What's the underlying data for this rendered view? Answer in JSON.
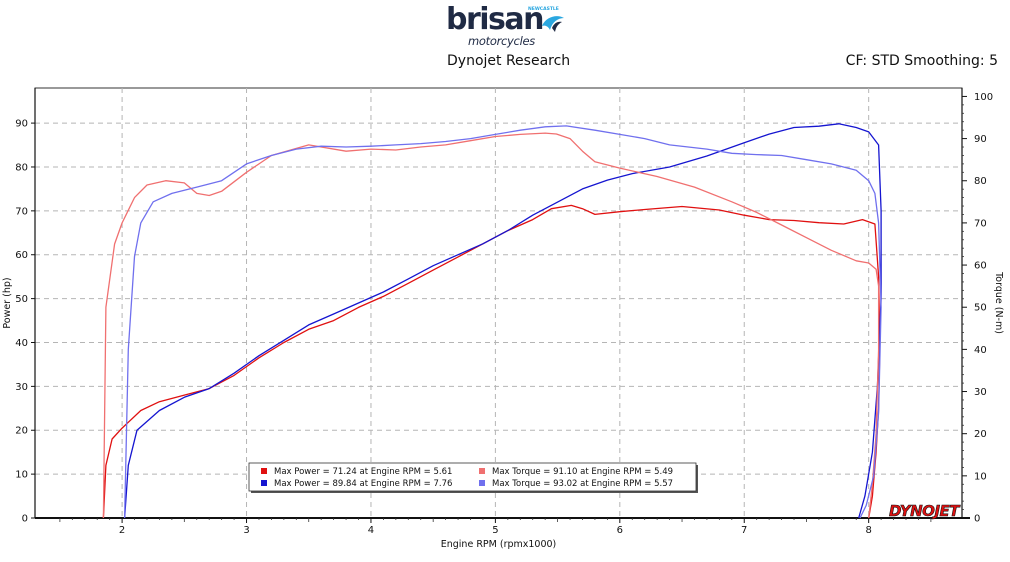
{
  "header": {
    "brand_name": "brisan",
    "brand_sub": "motorcycles",
    "brand_tag": "NEWCASTLE",
    "title": "Dynojet Research",
    "info": "CF: STD Smoothing: 5"
  },
  "watermark": "DYNOJET",
  "chart_data": {
    "type": "line",
    "xlabel": "Engine RPM (rpmx1000)",
    "ylabel_left": "Power (hp)",
    "ylabel_right": "Torque (N-m)",
    "xlim": [
      1.3,
      8.75
    ],
    "ylim_left": [
      0,
      98
    ],
    "ylim_right": [
      0,
      102
    ],
    "x_ticks": [
      2,
      3,
      4,
      5,
      6,
      7,
      8
    ],
    "left_ticks": [
      0,
      10,
      20,
      30,
      40,
      50,
      60,
      70,
      80,
      90
    ],
    "right_ticks": [
      0,
      10,
      20,
      30,
      40,
      50,
      60,
      70,
      80,
      90,
      100
    ],
    "grid": true,
    "colors": {
      "red": "#e01010",
      "blue": "#1515d0",
      "lightred": "#f07070",
      "lightblue": "#7070ee"
    },
    "legend": [
      {
        "text": "Max Power = 71.24 at Engine RPM = 5.61",
        "color": "#e01010"
      },
      {
        "text": "Max Torque = 91.10 at Engine RPM = 5.49",
        "color": "#f07070"
      },
      {
        "text": "Max Power = 89.84 at Engine RPM = 7.76",
        "color": "#1515d0"
      },
      {
        "text": "Max Torque = 93.02 at Engine RPM = 5.57",
        "color": "#7070ee"
      }
    ],
    "series": [
      {
        "axis": "left",
        "colorKey": "red",
        "points": [
          [
            1.85,
            0
          ],
          [
            1.87,
            12
          ],
          [
            1.92,
            18
          ],
          [
            2.0,
            20.5
          ],
          [
            2.15,
            24.5
          ],
          [
            2.3,
            26.5
          ],
          [
            2.5,
            28
          ],
          [
            2.7,
            29.5
          ],
          [
            2.9,
            32.5
          ],
          [
            3.1,
            36.5
          ],
          [
            3.3,
            40
          ],
          [
            3.5,
            43
          ],
          [
            3.7,
            45
          ],
          [
            3.9,
            48
          ],
          [
            4.1,
            50.5
          ],
          [
            4.3,
            53.5
          ],
          [
            4.5,
            56.5
          ],
          [
            4.7,
            59.5
          ],
          [
            4.9,
            62.5
          ],
          [
            5.1,
            65.5
          ],
          [
            5.3,
            68
          ],
          [
            5.45,
            70.5
          ],
          [
            5.61,
            71.24
          ],
          [
            5.7,
            70.5
          ],
          [
            5.8,
            69.2
          ],
          [
            6.0,
            69.8
          ],
          [
            6.2,
            70.3
          ],
          [
            6.5,
            71
          ],
          [
            6.8,
            70.2
          ],
          [
            7.0,
            69
          ],
          [
            7.2,
            68
          ],
          [
            7.4,
            67.8
          ],
          [
            7.6,
            67.3
          ],
          [
            7.8,
            67
          ],
          [
            7.95,
            68
          ],
          [
            8.05,
            67
          ],
          [
            8.08,
            55
          ],
          [
            8.09,
            40
          ],
          [
            8.08,
            25
          ],
          [
            8.06,
            15
          ],
          [
            8.03,
            5
          ],
          [
            8.0,
            0
          ]
        ]
      },
      {
        "axis": "left",
        "colorKey": "blue",
        "points": [
          [
            2.02,
            0
          ],
          [
            2.05,
            12
          ],
          [
            2.12,
            20
          ],
          [
            2.3,
            24.5
          ],
          [
            2.5,
            27.5
          ],
          [
            2.7,
            29.5
          ],
          [
            2.9,
            33
          ],
          [
            3.1,
            37
          ],
          [
            3.3,
            40.5
          ],
          [
            3.5,
            44
          ],
          [
            3.7,
            46.5
          ],
          [
            3.9,
            49
          ],
          [
            4.1,
            51.5
          ],
          [
            4.3,
            54.5
          ],
          [
            4.5,
            57.5
          ],
          [
            4.7,
            60
          ],
          [
            4.9,
            62.5
          ],
          [
            5.1,
            65.5
          ],
          [
            5.3,
            69
          ],
          [
            5.5,
            72
          ],
          [
            5.7,
            75
          ],
          [
            5.9,
            77
          ],
          [
            6.1,
            78.5
          ],
          [
            6.4,
            80
          ],
          [
            6.7,
            82.5
          ],
          [
            7.0,
            85.5
          ],
          [
            7.2,
            87.5
          ],
          [
            7.4,
            89
          ],
          [
            7.6,
            89.3
          ],
          [
            7.76,
            89.84
          ],
          [
            7.9,
            89
          ],
          [
            8.0,
            88
          ],
          [
            8.08,
            85
          ],
          [
            8.1,
            70
          ],
          [
            8.1,
            50
          ],
          [
            8.07,
            30
          ],
          [
            8.03,
            15
          ],
          [
            7.97,
            5
          ],
          [
            7.92,
            0
          ]
        ]
      },
      {
        "axis": "right",
        "colorKey": "lightred",
        "points": [
          [
            1.85,
            0
          ],
          [
            1.87,
            50
          ],
          [
            1.94,
            65
          ],
          [
            2.0,
            70
          ],
          [
            2.1,
            76
          ],
          [
            2.2,
            79
          ],
          [
            2.35,
            80
          ],
          [
            2.5,
            79.5
          ],
          [
            2.6,
            77
          ],
          [
            2.7,
            76.5
          ],
          [
            2.8,
            77.5
          ],
          [
            3.0,
            82
          ],
          [
            3.2,
            86
          ],
          [
            3.5,
            88.5
          ],
          [
            3.8,
            87
          ],
          [
            4.0,
            87.5
          ],
          [
            4.2,
            87.3
          ],
          [
            4.4,
            88
          ],
          [
            4.6,
            88.5
          ],
          [
            4.8,
            89.5
          ],
          [
            5.0,
            90.5
          ],
          [
            5.2,
            91
          ],
          [
            5.4,
            91.3
          ],
          [
            5.49,
            91.1
          ],
          [
            5.6,
            90
          ],
          [
            5.7,
            87
          ],
          [
            5.8,
            84.5
          ],
          [
            6.0,
            83
          ],
          [
            6.3,
            81
          ],
          [
            6.6,
            78.5
          ],
          [
            6.9,
            75
          ],
          [
            7.1,
            72.5
          ],
          [
            7.3,
            69.5
          ],
          [
            7.5,
            66.5
          ],
          [
            7.7,
            63.5
          ],
          [
            7.9,
            61
          ],
          [
            8.0,
            60.5
          ],
          [
            8.06,
            59
          ],
          [
            8.08,
            55
          ],
          [
            8.08,
            40
          ],
          [
            8.06,
            20
          ],
          [
            8.03,
            8
          ],
          [
            8.0,
            0
          ]
        ]
      },
      {
        "axis": "right",
        "colorKey": "lightblue",
        "points": [
          [
            2.02,
            0
          ],
          [
            2.05,
            40
          ],
          [
            2.1,
            62
          ],
          [
            2.15,
            70
          ],
          [
            2.25,
            75
          ],
          [
            2.4,
            77
          ],
          [
            2.6,
            78.5
          ],
          [
            2.8,
            80
          ],
          [
            3.0,
            84
          ],
          [
            3.2,
            86
          ],
          [
            3.4,
            87.5
          ],
          [
            3.6,
            88.2
          ],
          [
            3.8,
            88
          ],
          [
            4.0,
            88.2
          ],
          [
            4.2,
            88.5
          ],
          [
            4.4,
            88.8
          ],
          [
            4.6,
            89.3
          ],
          [
            4.8,
            90
          ],
          [
            5.0,
            91
          ],
          [
            5.2,
            92
          ],
          [
            5.4,
            92.8
          ],
          [
            5.57,
            93.02
          ],
          [
            5.8,
            92
          ],
          [
            6.0,
            91
          ],
          [
            6.2,
            90
          ],
          [
            6.4,
            88.5
          ],
          [
            6.7,
            87.5
          ],
          [
            6.9,
            86.5
          ],
          [
            7.1,
            86.2
          ],
          [
            7.3,
            86
          ],
          [
            7.5,
            85
          ],
          [
            7.7,
            84
          ],
          [
            7.9,
            82.5
          ],
          [
            8.0,
            80
          ],
          [
            8.05,
            77
          ],
          [
            8.08,
            70
          ],
          [
            8.1,
            50
          ],
          [
            8.08,
            25
          ],
          [
            8.04,
            10
          ],
          [
            7.98,
            3
          ],
          [
            7.93,
            0
          ]
        ]
      }
    ]
  }
}
